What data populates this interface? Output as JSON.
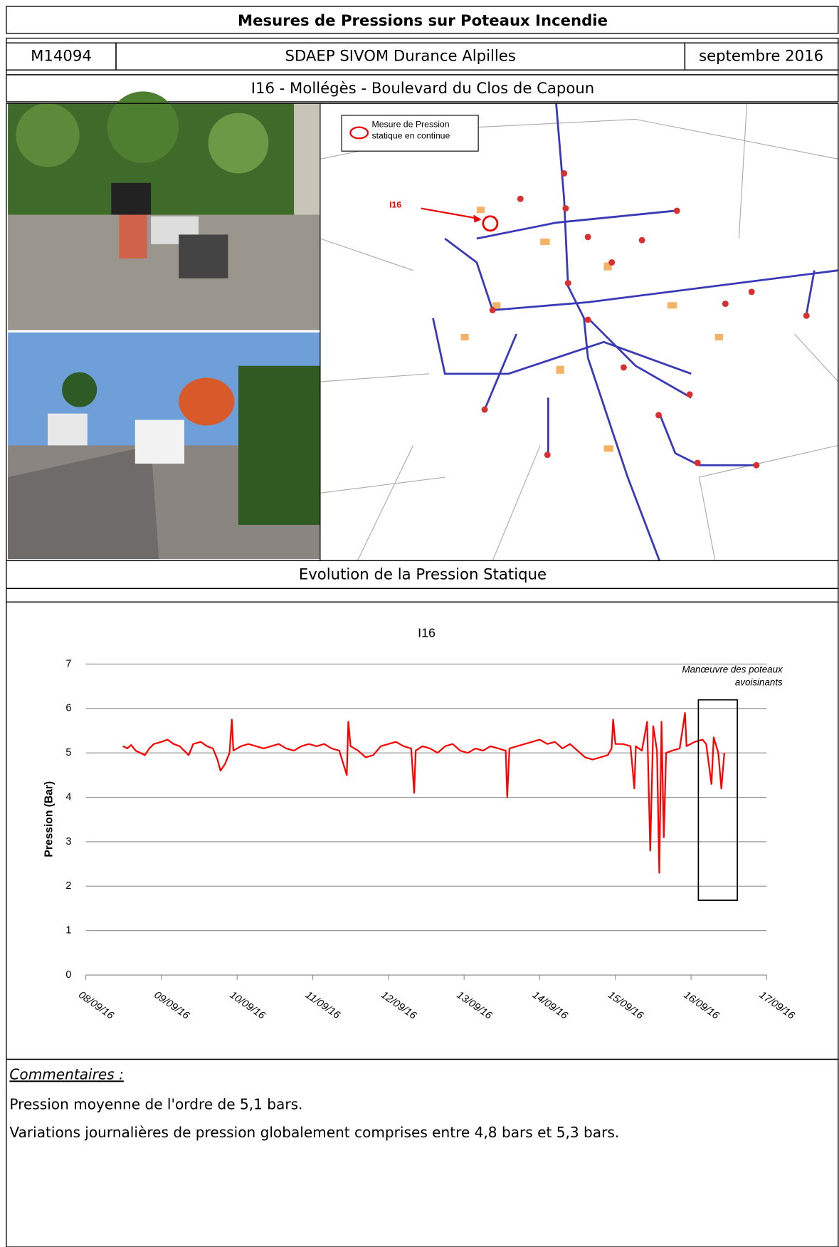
{
  "header": {
    "title": "Mesures de Pressions sur Poteaux Incendie",
    "code": "M14094",
    "client": "SDAEP SIVOM Durance Alpilles",
    "date": "septembre 2016"
  },
  "site": "I16 - Mollégès - Boulevard du Clos de Capoun",
  "map": {
    "legend": [
      "Mesure de Pression",
      "statique en continue"
    ],
    "label": "I16"
  },
  "section_title": "Evolution de la Pression Statique",
  "chart_data": {
    "type": "line",
    "title": "I16",
    "y_label": "Pression (Bar)",
    "color": "#ff0000",
    "ylim": [
      0,
      7
    ],
    "yticks": [
      0,
      1,
      2,
      3,
      4,
      5,
      6,
      7
    ],
    "xlim": [
      42621,
      42630
    ],
    "xticks": [
      {
        "value": 42621,
        "label": "08/09/16"
      },
      {
        "value": 42622,
        "label": "09/09/16"
      },
      {
        "value": 42623,
        "label": "10/09/16"
      },
      {
        "value": 42624,
        "label": "11/09/16"
      },
      {
        "value": 42625,
        "label": "12/09/16"
      },
      {
        "value": 42626,
        "label": "13/09/16"
      },
      {
        "value": 42627,
        "label": "14/09/16"
      },
      {
        "value": 42628,
        "label": "15/09/16"
      },
      {
        "value": 42629,
        "label": "16/09/16"
      },
      {
        "value": 42630,
        "label": "17/09/16"
      }
    ],
    "grid": true,
    "annotation": [
      "Manœuvre des poteaux",
      "avoisinants"
    ],
    "x": [
      42621.49,
      42621.55,
      42621.6,
      42621.66,
      42621.72,
      42621.78,
      42621.84,
      42621.9,
      42622,
      42622.08,
      42622.16,
      42622.24,
      42622.3,
      42622.36,
      42622.42,
      42622.52,
      42622.6,
      42622.68,
      42622.74,
      42622.78,
      42622.84,
      42622.9,
      42622.93,
      42622.95,
      42623.05,
      42623.15,
      42623.25,
      42623.35,
      42623.45,
      42623.55,
      42623.65,
      42623.75,
      42623.85,
      42623.95,
      42624.05,
      42624.15,
      42624.25,
      42624.35,
      42624.45,
      42624.47,
      42624.5,
      42624.6,
      42624.7,
      42624.8,
      42624.9,
      42625,
      42625.1,
      42625.2,
      42625.3,
      42625.34,
      42625.36,
      42625.45,
      42625.55,
      42625.65,
      42625.75,
      42625.85,
      42625.95,
      42626.05,
      42626.15,
      42626.25,
      42626.35,
      42626.45,
      42626.55,
      42626.57,
      42626.6,
      42626.7,
      42626.8,
      42626.9,
      42627,
      42627.1,
      42627.2,
      42627.3,
      42627.4,
      42627.5,
      42627.6,
      42627.7,
      42627.8,
      42627.9,
      42627.95,
      42627.97,
      42628,
      42628.1,
      42628.2,
      42628.25,
      42628.27,
      42628.35,
      42628.42,
      42628.46,
      42628.5,
      42628.55,
      42628.58,
      42628.61,
      42628.64,
      42628.67,
      42628.75,
      42628.85,
      42628.92,
      42628.94,
      42629.05,
      42629.15,
      42629.2,
      42629.27,
      42629.3,
      42629.36,
      42629.4,
      42629.44
    ],
    "values": [
      5.15,
      5.1,
      5.18,
      5.05,
      5,
      4.95,
      5.1,
      5.2,
      5.25,
      5.3,
      5.2,
      5.15,
      5.05,
      4.95,
      5.2,
      5.25,
      5.15,
      5.1,
      4.85,
      4.6,
      4.75,
      5,
      5.75,
      5.05,
      5.15,
      5.2,
      5.15,
      5.1,
      5.15,
      5.2,
      5.1,
      5.05,
      5.15,
      5.2,
      5.15,
      5.2,
      5.1,
      5.05,
      4.5,
      5.7,
      5.15,
      5.05,
      4.9,
      4.95,
      5.15,
      5.2,
      5.25,
      5.15,
      5.1,
      4.1,
      5.05,
      5.15,
      5.1,
      5,
      5.15,
      5.2,
      5.05,
      5,
      5.1,
      5.05,
      5.15,
      5.1,
      5.05,
      4,
      5.1,
      5.15,
      5.2,
      5.25,
      5.3,
      5.2,
      5.25,
      5.1,
      5.2,
      5.05,
      4.9,
      4.85,
      4.9,
      4.95,
      5.1,
      5.75,
      5.2,
      5.2,
      5.15,
      4.2,
      5.15,
      5.05,
      5.7,
      2.8,
      5.6,
      5.05,
      2.3,
      5.7,
      3.1,
      5,
      5.05,
      5.1,
      5.9,
      5.15,
      5.25,
      5.3,
      5.2,
      4.3,
      5.35,
      5,
      4.2,
      5
    ]
  },
  "comments": {
    "title": "Commentaires :",
    "lines": [
      "Pression moyenne de l'ordre de 5,1 bars.",
      "Variations journalières de pression globalement comprises entre 4,8 bars et 5,3 bars."
    ]
  }
}
